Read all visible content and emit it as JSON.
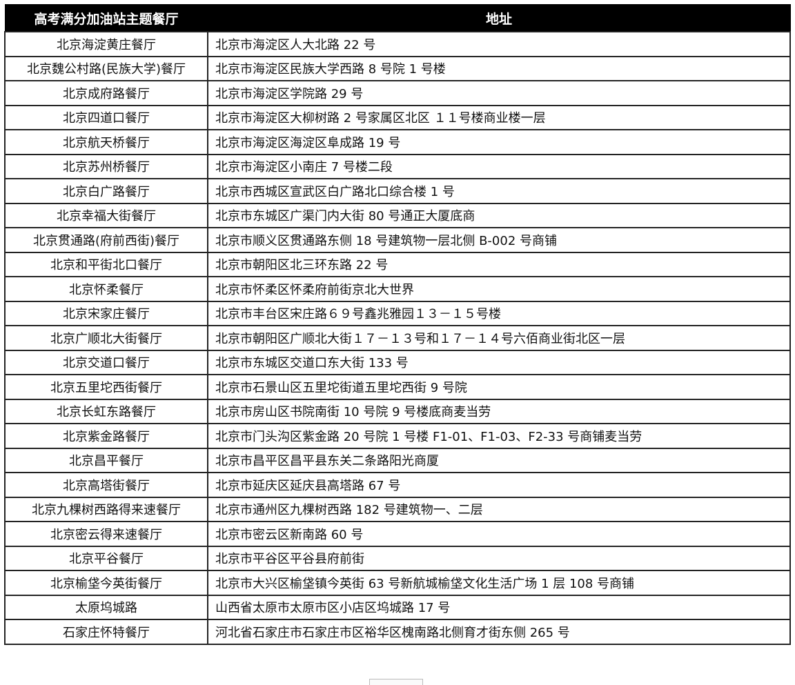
{
  "header": {
    "name": "高考满分加油站主题餐厅",
    "address": "地址"
  },
  "rows": [
    {
      "name": "北京海淀黄庄餐厅",
      "address": "北京市海淀区人大北路 22 号"
    },
    {
      "name": "北京魏公村路(民族大学)餐厅",
      "address": "北京市海淀区民族大学西路 8 号院 1 号楼"
    },
    {
      "name": "北京成府路餐厅",
      "address": "北京市海淀区学院路 29 号"
    },
    {
      "name": "北京四道口餐厅",
      "address": "北京市海淀区大柳树路 2 号家属区北区 １１号楼商业楼一层"
    },
    {
      "name": "北京航天桥餐厅",
      "address": "北京市海淀区海淀区阜成路 19 号"
    },
    {
      "name": "北京苏州桥餐厅",
      "address": "北京市海淀区小南庄 7 号楼二段"
    },
    {
      "name": "北京白广路餐厅",
      "address": "北京市西城区宣武区白广路北口综合楼 1 号"
    },
    {
      "name": "北京幸福大街餐厅",
      "address": "北京市东城区广渠门内大街 80 号通正大厦底商"
    },
    {
      "name": "北京贯通路(府前西街)餐厅",
      "address": "北京市顺义区贯通路东侧 18 号建筑物一层北侧 B-002 号商铺"
    },
    {
      "name": "北京和平街北口餐厅",
      "address": "北京市朝阳区北三环东路 22 号"
    },
    {
      "name": "北京怀柔餐厅",
      "address": "北京市怀柔区怀柔府前街京北大世界"
    },
    {
      "name": "北京宋家庄餐厅",
      "address": "北京市丰台区宋庄路６９号鑫兆雅园１３－１５号楼"
    },
    {
      "name": "北京广顺北大街餐厅",
      "address": "北京市朝阳区广顺北大街１７－１３号和１７－１４号六佰商业街北区一层"
    },
    {
      "name": "北京交道口餐厅",
      "address": "北京市东城区交道口东大街 133 号"
    },
    {
      "name": "北京五里坨西街餐厅",
      "address": "北京市石景山区五里坨街道五里坨西街 9 号院"
    },
    {
      "name": "北京长虹东路餐厅",
      "address": "北京市房山区书院南街 10 号院 9 号楼底商麦当劳"
    },
    {
      "name": "北京紫金路餐厅",
      "address": "北京市门头沟区紫金路 20 号院 1 号楼 F1-01、F1-03、F2-33 号商铺麦当劳"
    },
    {
      "name": "北京昌平餐厅",
      "address": "北京市昌平区昌平县东关二条路阳光商厦"
    },
    {
      "name": "北京高塔街餐厅",
      "address": "北京市延庆区延庆县高塔路 67 号"
    },
    {
      "name": "北京九棵树西路得来速餐厅",
      "address": "北京市通州区九棵树西路 182 号建筑物一、二层"
    },
    {
      "name": "北京密云得来速餐厅",
      "address": "北京市密云区新南路 60 号"
    },
    {
      "name": "北京平谷餐厅",
      "address": "北京市平谷区平谷县府前街"
    },
    {
      "name": "北京榆垡今英街餐厅",
      "address": "北京市大兴区榆垡镇今英街 63 号新航城榆垡文化生活广场 1 层 108 号商铺"
    },
    {
      "name": "太原坞城路",
      "address": "山西省太原市太原市区小店区坞城路 17 号"
    },
    {
      "name": "石家庄怀特餐厅",
      "address": "河北省石家庄市石家庄市区裕华区槐南路北侧育才街东侧 265 号"
    }
  ]
}
